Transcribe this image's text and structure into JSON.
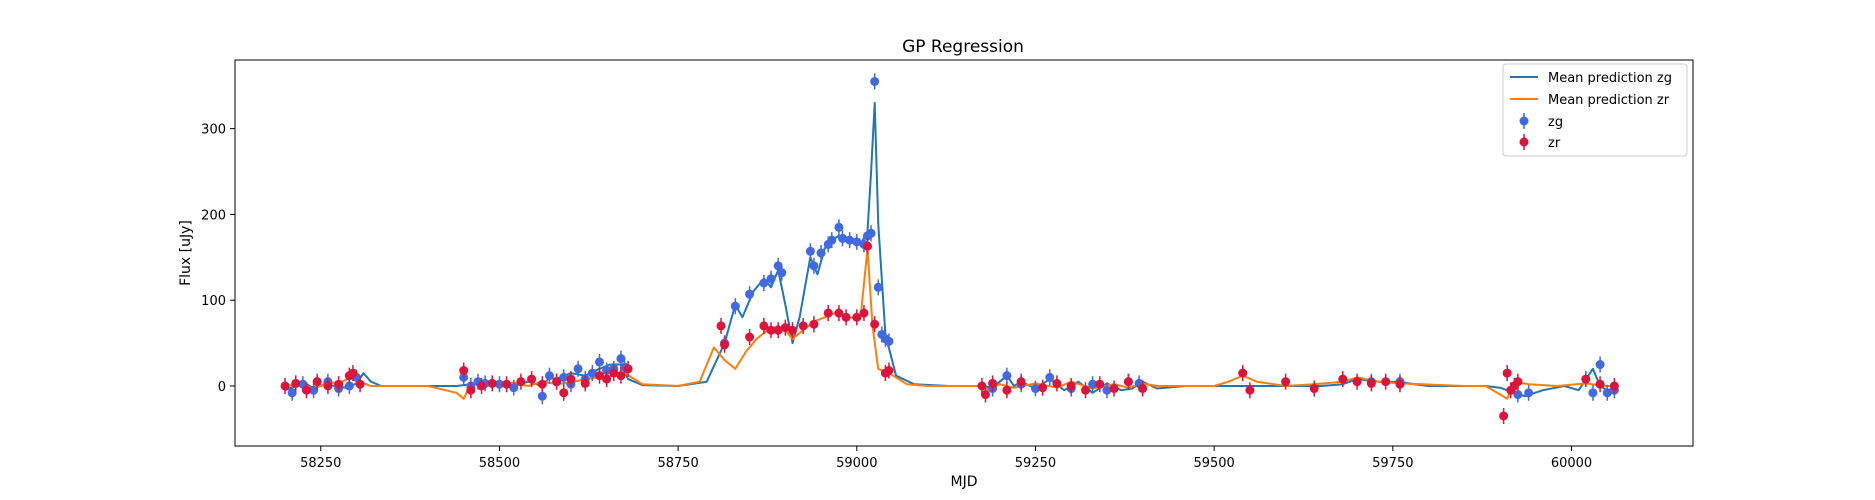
{
  "chart_data": {
    "type": "scatter",
    "title": "GP Regression",
    "xlabel": "MJD",
    "ylabel": "Flux [uJy]",
    "xlim": [
      58130,
      60170
    ],
    "ylim": [
      -70,
      380
    ],
    "xticks": [
      58250,
      58500,
      58750,
      59000,
      59250,
      59500,
      59750,
      60000
    ],
    "yticks": [
      0,
      100,
      200,
      300
    ],
    "grid": false,
    "legend": "top-right",
    "series": [
      {
        "name": "Mean prediction zg",
        "kind": "line",
        "color": "#1f77b4",
        "x": [
          58200,
          58215,
          58225,
          58240,
          58255,
          58270,
          58285,
          58300,
          58310,
          58320,
          58335,
          58350,
          58400,
          58440,
          58450,
          58460,
          58480,
          58500,
          58520,
          58540,
          58560,
          58570,
          58580,
          58600,
          58620,
          58640,
          58655,
          58670,
          58680,
          58700,
          58750,
          58790,
          58815,
          58830,
          58840,
          58855,
          58870,
          58880,
          58890,
          58900,
          58910,
          58920,
          58935,
          58945,
          58955,
          58965,
          58975,
          58990,
          59005,
          59015,
          59020,
          59025,
          59030,
          59040,
          59055,
          59080,
          59130,
          59175,
          59190,
          59200,
          59210,
          59220,
          59230,
          59250,
          59270,
          59290,
          59310,
          59330,
          59350,
          59370,
          59385,
          59400,
          59420,
          59460,
          59540,
          59600,
          59650,
          59680,
          59700,
          59730,
          59760,
          59780,
          59800,
          59850,
          59880,
          59900,
          59920,
          59935,
          59960,
          59990,
          60010,
          60030,
          60040,
          60050,
          60060
        ],
        "y": [
          -5,
          0,
          5,
          -3,
          2,
          0,
          -2,
          3,
          15,
          5,
          0,
          0,
          0,
          0,
          1,
          2,
          3,
          2,
          0,
          5,
          0,
          10,
          8,
          15,
          12,
          20,
          25,
          25,
          8,
          1,
          0,
          5,
          50,
          95,
          80,
          110,
          125,
          115,
          135,
          95,
          50,
          80,
          150,
          130,
          160,
          170,
          175,
          170,
          165,
          180,
          250,
          330,
          190,
          60,
          12,
          2,
          0,
          0,
          -2,
          5,
          12,
          0,
          5,
          -3,
          8,
          -5,
          5,
          -8,
          3,
          -5,
          -3,
          5,
          -3,
          0,
          0,
          0,
          0,
          2,
          8,
          5,
          5,
          2,
          0,
          0,
          0,
          -2,
          -8,
          -12,
          -5,
          0,
          -5,
          20,
          0,
          -5,
          -3
        ]
      },
      {
        "name": "Mean prediction zr",
        "kind": "line",
        "color": "#ff7f0e",
        "x": [
          58200,
          58220,
          58240,
          58260,
          58280,
          58295,
          58305,
          58320,
          58360,
          58400,
          58440,
          58450,
          58460,
          58480,
          58500,
          58520,
          58540,
          58560,
          58580,
          58600,
          58620,
          58640,
          58660,
          58675,
          58700,
          58750,
          58780,
          58800,
          58815,
          58830,
          58845,
          58860,
          58875,
          58890,
          58900,
          58910,
          58925,
          58940,
          58955,
          58970,
          58990,
          59005,
          59015,
          59022,
          59030,
          59045,
          59070,
          59100,
          59175,
          59185,
          59200,
          59220,
          59250,
          59280,
          59300,
          59330,
          59360,
          59380,
          59400,
          59420,
          59500,
          59520,
          59540,
          59560,
          59600,
          59640,
          59680,
          59700,
          59730,
          59760,
          59790,
          59850,
          59880,
          59900,
          59910,
          59920,
          59940,
          59980,
          60020,
          60050,
          60060
        ],
        "y": [
          0,
          2,
          -3,
          3,
          5,
          12,
          5,
          0,
          0,
          0,
          -8,
          -15,
          3,
          2,
          0,
          4,
          0,
          5,
          2,
          4,
          8,
          10,
          12,
          15,
          2,
          0,
          5,
          45,
          30,
          20,
          40,
          55,
          65,
          70,
          65,
          55,
          65,
          75,
          80,
          85,
          80,
          78,
          160,
          70,
          20,
          15,
          2,
          0,
          0,
          -5,
          2,
          -2,
          3,
          -2,
          5,
          -3,
          2,
          -2,
          3,
          0,
          0,
          5,
          12,
          5,
          0,
          2,
          5,
          10,
          5,
          3,
          2,
          0,
          0,
          -10,
          -15,
          5,
          2,
          0,
          3,
          0,
          0
        ]
      },
      {
        "name": "zg",
        "kind": "points",
        "color": "#4169e1",
        "x": [
          58210,
          58225,
          58240,
          58260,
          58275,
          58290,
          58300,
          58450,
          58460,
          58470,
          58480,
          58500,
          58520,
          58560,
          58570,
          58580,
          58590,
          58600,
          58610,
          58620,
          58630,
          58640,
          58650,
          58660,
          58670,
          58675,
          58815,
          58830,
          58850,
          58870,
          58880,
          58890,
          58895,
          58935,
          58940,
          58950,
          58960,
          58965,
          58975,
          58980,
          58990,
          59000,
          59010,
          59015,
          59020,
          59025,
          59030,
          59035,
          59040,
          59045,
          59190,
          59210,
          59230,
          59250,
          59270,
          59300,
          59330,
          59350,
          59380,
          59395,
          59720,
          59760,
          59925,
          59940,
          60030,
          60040,
          60050,
          60060
        ],
        "y": [
          -8,
          2,
          -5,
          5,
          -3,
          0,
          10,
          10,
          0,
          5,
          3,
          2,
          -2,
          -12,
          12,
          5,
          10,
          2,
          20,
          8,
          15,
          28,
          18,
          20,
          32,
          22,
          50,
          93,
          107,
          120,
          125,
          140,
          132,
          157,
          140,
          155,
          165,
          170,
          185,
          172,
          170,
          168,
          165,
          175,
          178,
          355,
          115,
          60,
          55,
          52,
          -3,
          12,
          2,
          -3,
          10,
          -3,
          2,
          -5,
          5,
          3,
          5,
          5,
          -10,
          -8,
          -8,
          25,
          -8,
          -5
        ]
      },
      {
        "name": "zr",
        "kind": "points",
        "color": "#dc143c",
        "x": [
          58200,
          58215,
          58230,
          58245,
          58260,
          58275,
          58290,
          58295,
          58305,
          58450,
          58460,
          58475,
          58490,
          58510,
          58530,
          58545,
          58560,
          58580,
          58590,
          58600,
          58620,
          58640,
          58650,
          58660,
          58670,
          58680,
          58810,
          58815,
          58850,
          58870,
          58880,
          58890,
          58900,
          58910,
          58925,
          58940,
          58960,
          58975,
          58985,
          59000,
          59010,
          59015,
          59025,
          59040,
          59045,
          59175,
          59180,
          59190,
          59210,
          59230,
          59260,
          59280,
          59300,
          59320,
          59340,
          59360,
          59380,
          59400,
          59540,
          59550,
          59600,
          59640,
          59680,
          59700,
          59720,
          59740,
          59760,
          59905,
          59910,
          59915,
          59920,
          59925,
          60020,
          60040,
          60060
        ],
        "y": [
          0,
          3,
          -5,
          5,
          0,
          2,
          12,
          15,
          2,
          18,
          -5,
          0,
          3,
          2,
          5,
          8,
          2,
          5,
          -8,
          8,
          3,
          12,
          8,
          15,
          12,
          20,
          70,
          48,
          57,
          70,
          65,
          65,
          68,
          65,
          70,
          72,
          85,
          85,
          80,
          80,
          85,
          163,
          72,
          15,
          18,
          0,
          -10,
          3,
          -5,
          5,
          -2,
          3,
          0,
          -5,
          2,
          -3,
          5,
          -3,
          15,
          -5,
          5,
          -3,
          8,
          5,
          3,
          5,
          2,
          -35,
          15,
          -5,
          0,
          5,
          8,
          2,
          0
        ]
      }
    ]
  }
}
